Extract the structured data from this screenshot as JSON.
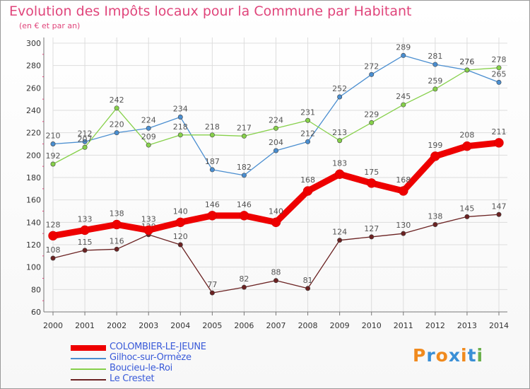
{
  "title": "Evolution des Impôts locaux pour la Commune par Habitant",
  "subtitle": "(en € et par an)",
  "logo": {
    "text": "Proxiti",
    "colors": [
      "#f08a1e",
      "#3a8fd6",
      "#f08a1e",
      "#3a8fd6",
      "#f08a1e",
      "#3a8fd6",
      "#6ab04c"
    ]
  },
  "chart_data": {
    "type": "line",
    "title": "Evolution des Impôts locaux pour la Commune par Habitant",
    "subtitle": "(en € et par an)",
    "xlabel": "",
    "ylabel": "",
    "x": [
      "2000",
      "2001",
      "2002",
      "2003",
      "2004",
      "2005",
      "2006",
      "2007",
      "2008",
      "2009",
      "2010",
      "2011",
      "2012",
      "2013",
      "2014"
    ],
    "yticks": [
      "60",
      "80",
      "100",
      "120",
      "140",
      "160",
      "180",
      "200",
      "220",
      "240",
      "260",
      "280",
      "300"
    ],
    "ylim": [
      60,
      300
    ],
    "grid": true,
    "legend_position": "bottom-left",
    "series": [
      {
        "name": "Gilhoc-sur-Ormèze",
        "color": "#4a8ed0",
        "values": [
          210,
          212,
          220,
          224,
          234,
          187,
          182,
          204,
          212,
          252,
          272,
          289,
          281,
          276,
          265
        ]
      },
      {
        "name": "Boucieu-le-Roi",
        "color": "#86d04a",
        "values": [
          192,
          207,
          242,
          209,
          218,
          218,
          217,
          224,
          231,
          213,
          229,
          245,
          259,
          276,
          278
        ]
      },
      {
        "name": "Le Crestet",
        "color": "#6b2222",
        "values": [
          108,
          115,
          116,
          129,
          120,
          77,
          82,
          88,
          81,
          124,
          127,
          130,
          138,
          145,
          147
        ]
      },
      {
        "name": "COLOMBIER-LE-JEUNE",
        "color": "#ee0000",
        "values": [
          128,
          133,
          138,
          133,
          140,
          146,
          146,
          140,
          168,
          183,
          175,
          168,
          199,
          208,
          211
        ]
      }
    ]
  }
}
